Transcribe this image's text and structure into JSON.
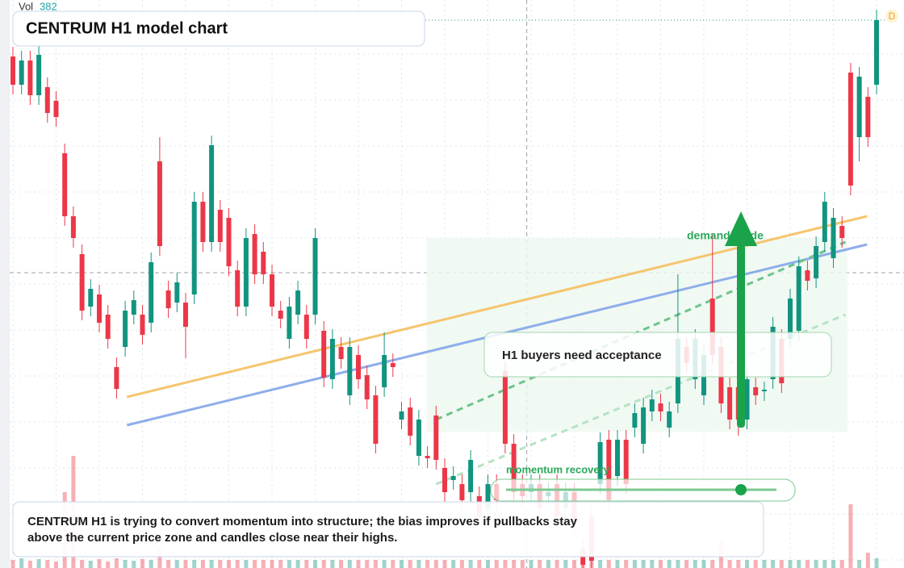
{
  "chart_data": {
    "type": "candlestick",
    "title": "CENTRUM H1 model chart",
    "volume_label": "Vol",
    "volume_value": 382,
    "badge": "D",
    "callout": "H1 buyers need acceptance",
    "slider_label": "momentum recovery",
    "note": [
      "CENTRUM H1 is trying to convert momentum into structure; the bias improves if pullbacks stay",
      "above the current price zone and candles close near their highs."
    ],
    "xlim": [
      0,
      100
    ],
    "xticks": [
      0,
      5,
      10,
      15,
      20,
      25,
      30,
      35,
      40,
      45,
      50,
      55,
      60,
      65,
      70,
      75,
      80,
      85,
      90,
      95,
      100
    ],
    "ylim": [
      0,
      704
    ],
    "yticks": [
      10,
      67,
      124,
      181,
      238,
      295,
      352,
      409,
      466,
      523,
      580,
      637
    ],
    "grid": true,
    "up_color": "#12947f",
    "down_color": "#ec3748",
    "ohlc": [
      [
        634,
        646,
        587,
        599
      ],
      [
        599,
        641,
        587,
        629
      ],
      [
        629,
        641,
        574,
        586
      ],
      [
        586,
        648,
        574,
        636
      ],
      [
        596,
        608,
        552,
        564
      ],
      [
        579,
        591,
        547,
        559
      ],
      [
        514,
        526,
        424,
        436
      ],
      [
        436,
        448,
        397,
        409
      ],
      [
        389,
        401,
        307,
        319
      ],
      [
        324,
        358,
        312,
        346
      ],
      [
        339,
        351,
        292,
        304
      ],
      [
        314,
        326,
        272,
        284
      ],
      [
        249,
        261,
        210,
        222
      ],
      [
        274,
        331,
        262,
        319
      ],
      [
        314,
        344,
        302,
        332
      ],
      [
        314,
        326,
        277,
        289
      ],
      [
        304,
        391,
        292,
        379
      ],
      [
        504,
        534,
        387,
        399
      ],
      [
        344,
        356,
        310,
        322
      ],
      [
        329,
        366,
        317,
        354
      ],
      [
        329,
        341,
        260,
        299
      ],
      [
        339,
        466,
        327,
        454
      ],
      [
        454,
        466,
        392,
        404
      ],
      [
        404,
        536,
        392,
        524
      ],
      [
        444,
        456,
        392,
        404
      ],
      [
        434,
        446,
        362,
        374
      ],
      [
        369,
        381,
        312,
        324
      ],
      [
        324,
        421,
        312,
        409
      ],
      [
        414,
        426,
        352,
        364
      ],
      [
        392,
        404,
        352,
        364
      ],
      [
        364,
        376,
        312,
        324
      ],
      [
        319,
        331,
        297,
        309
      ],
      [
        284,
        336,
        272,
        324
      ],
      [
        314,
        356,
        302,
        344
      ],
      [
        314,
        326,
        272,
        284
      ],
      [
        314,
        421,
        302,
        409
      ],
      [
        294,
        306,
        224,
        236
      ],
      [
        234,
        296,
        222,
        284
      ],
      [
        274,
        286,
        247,
        259
      ],
      [
        214,
        286,
        202,
        274
      ],
      [
        264,
        276,
        222,
        234
      ],
      [
        239,
        251,
        197,
        209
      ],
      [
        214,
        226,
        142,
        154
      ],
      [
        224,
        292,
        212,
        264
      ],
      [
        254,
        266,
        237,
        249
      ],
      [
        184,
        206,
        172,
        194
      ],
      [
        199,
        211,
        152,
        164
      ],
      [
        139,
        196,
        127,
        184
      ],
      [
        139,
        151,
        124,
        136
      ],
      [
        189,
        201,
        122,
        134
      ],
      [
        124,
        136,
        82,
        94
      ],
      [
        109,
        126,
        97,
        114
      ],
      [
        104,
        116,
        72,
        84
      ],
      [
        94,
        146,
        82,
        134
      ],
      [
        89,
        101,
        52,
        64
      ],
      [
        74,
        116,
        62,
        104
      ],
      [
        104,
        116,
        72,
        84
      ],
      [
        244,
        256,
        142,
        154
      ],
      [
        154,
        166,
        82,
        94
      ],
      [
        104,
        116,
        77,
        89
      ],
      [
        94,
        116,
        82,
        104
      ],
      [
        104,
        116,
        62,
        74
      ],
      [
        89,
        106,
        77,
        94
      ],
      [
        104,
        116,
        52,
        64
      ],
      [
        74,
        106,
        62,
        94
      ],
      [
        94,
        106,
        42,
        54
      ],
      [
        24,
        36,
        0,
        4
      ],
      [
        64,
        76,
        0,
        9
      ],
      [
        104,
        168,
        92,
        156
      ],
      [
        159,
        171,
        72,
        84
      ],
      [
        114,
        171,
        102,
        159
      ],
      [
        159,
        171,
        92,
        104
      ],
      [
        174,
        204,
        162,
        192
      ],
      [
        154,
        211,
        142,
        199
      ],
      [
        194,
        221,
        182,
        209
      ],
      [
        204,
        216,
        182,
        194
      ],
      [
        174,
        206,
        162,
        194
      ],
      [
        204,
        364,
        192,
        284
      ],
      [
        274,
        286,
        242,
        254
      ],
      [
        234,
        296,
        222,
        284
      ],
      [
        214,
        276,
        202,
        264
      ],
      [
        334,
        414,
        252,
        264
      ],
      [
        274,
        286,
        192,
        204
      ],
      [
        224,
        236,
        172,
        184
      ],
      [
        224,
        236,
        164,
        184
      ],
      [
        184,
        246,
        172,
        234
      ],
      [
        224,
        236,
        202,
        214
      ],
      [
        219,
        231,
        207,
        221
      ],
      [
        234,
        311,
        222,
        299
      ],
      [
        284,
        296,
        217,
        229
      ],
      [
        284,
        346,
        272,
        334
      ],
      [
        294,
        386,
        282,
        374
      ],
      [
        369,
        381,
        344,
        356
      ],
      [
        359,
        411,
        347,
        399
      ],
      [
        404,
        466,
        392,
        454
      ],
      [
        384,
        446,
        372,
        434
      ],
      [
        424,
        436,
        397,
        409
      ],
      [
        614,
        626,
        462,
        474
      ],
      [
        534,
        621,
        504,
        609
      ],
      [
        584,
        596,
        522,
        534
      ],
      [
        599,
        692,
        587,
        679
      ]
    ],
    "volume": [
      10,
      12,
      9,
      11,
      10,
      8,
      94,
      139,
      10,
      9,
      11,
      8,
      12,
      10,
      9,
      11,
      10,
      24,
      10,
      10,
      10,
      10,
      10,
      10,
      10,
      10,
      10,
      10,
      10,
      10,
      10,
      10,
      10,
      10,
      10,
      10,
      10,
      10,
      10,
      10,
      10,
      10,
      10,
      10,
      10,
      10,
      10,
      10,
      10,
      10,
      10,
      10,
      10,
      10,
      10,
      10,
      10,
      10,
      10,
      10,
      10,
      10,
      10,
      10,
      10,
      10,
      18,
      20,
      10,
      10,
      10,
      10,
      10,
      10,
      10,
      10,
      10,
      10,
      10,
      10,
      10,
      10,
      34,
      10,
      10,
      10,
      10,
      10,
      10,
      10,
      10,
      10,
      10,
      10,
      10,
      10,
      10,
      79,
      10,
      19,
      12
    ],
    "volume_ylim": [
      0,
      704
    ],
    "trendlines": [
      {
        "color": "#f5c56e",
        "style": "solid",
        "start": [
          13.2,
          212
        ],
        "end": [
          98.9,
          436
        ]
      },
      {
        "color": "#8eaeea",
        "style": "solid",
        "start": [
          13.2,
          177
        ],
        "end": [
          98.9,
          401
        ]
      },
      {
        "color": "#6cc48a",
        "style": "dashed",
        "start": [
          49,
          184
        ],
        "end": [
          96.4,
          404
        ]
      },
      {
        "color": "#b6e3c3",
        "style": "dashed",
        "start": [
          49,
          104
        ],
        "end": [
          96.4,
          314
        ]
      }
    ],
    "zone": {
      "x": [
        47.9,
        96.6
      ],
      "y": [
        169,
        409
      ],
      "color": "#eef8f0"
    },
    "arrow": {
      "x": 84.3,
      "from": 174,
      "to": 442,
      "color": "#1aa34a",
      "label": "demand guide"
    },
    "crosshair": {
      "x": 59.5,
      "y": 366
    }
  }
}
